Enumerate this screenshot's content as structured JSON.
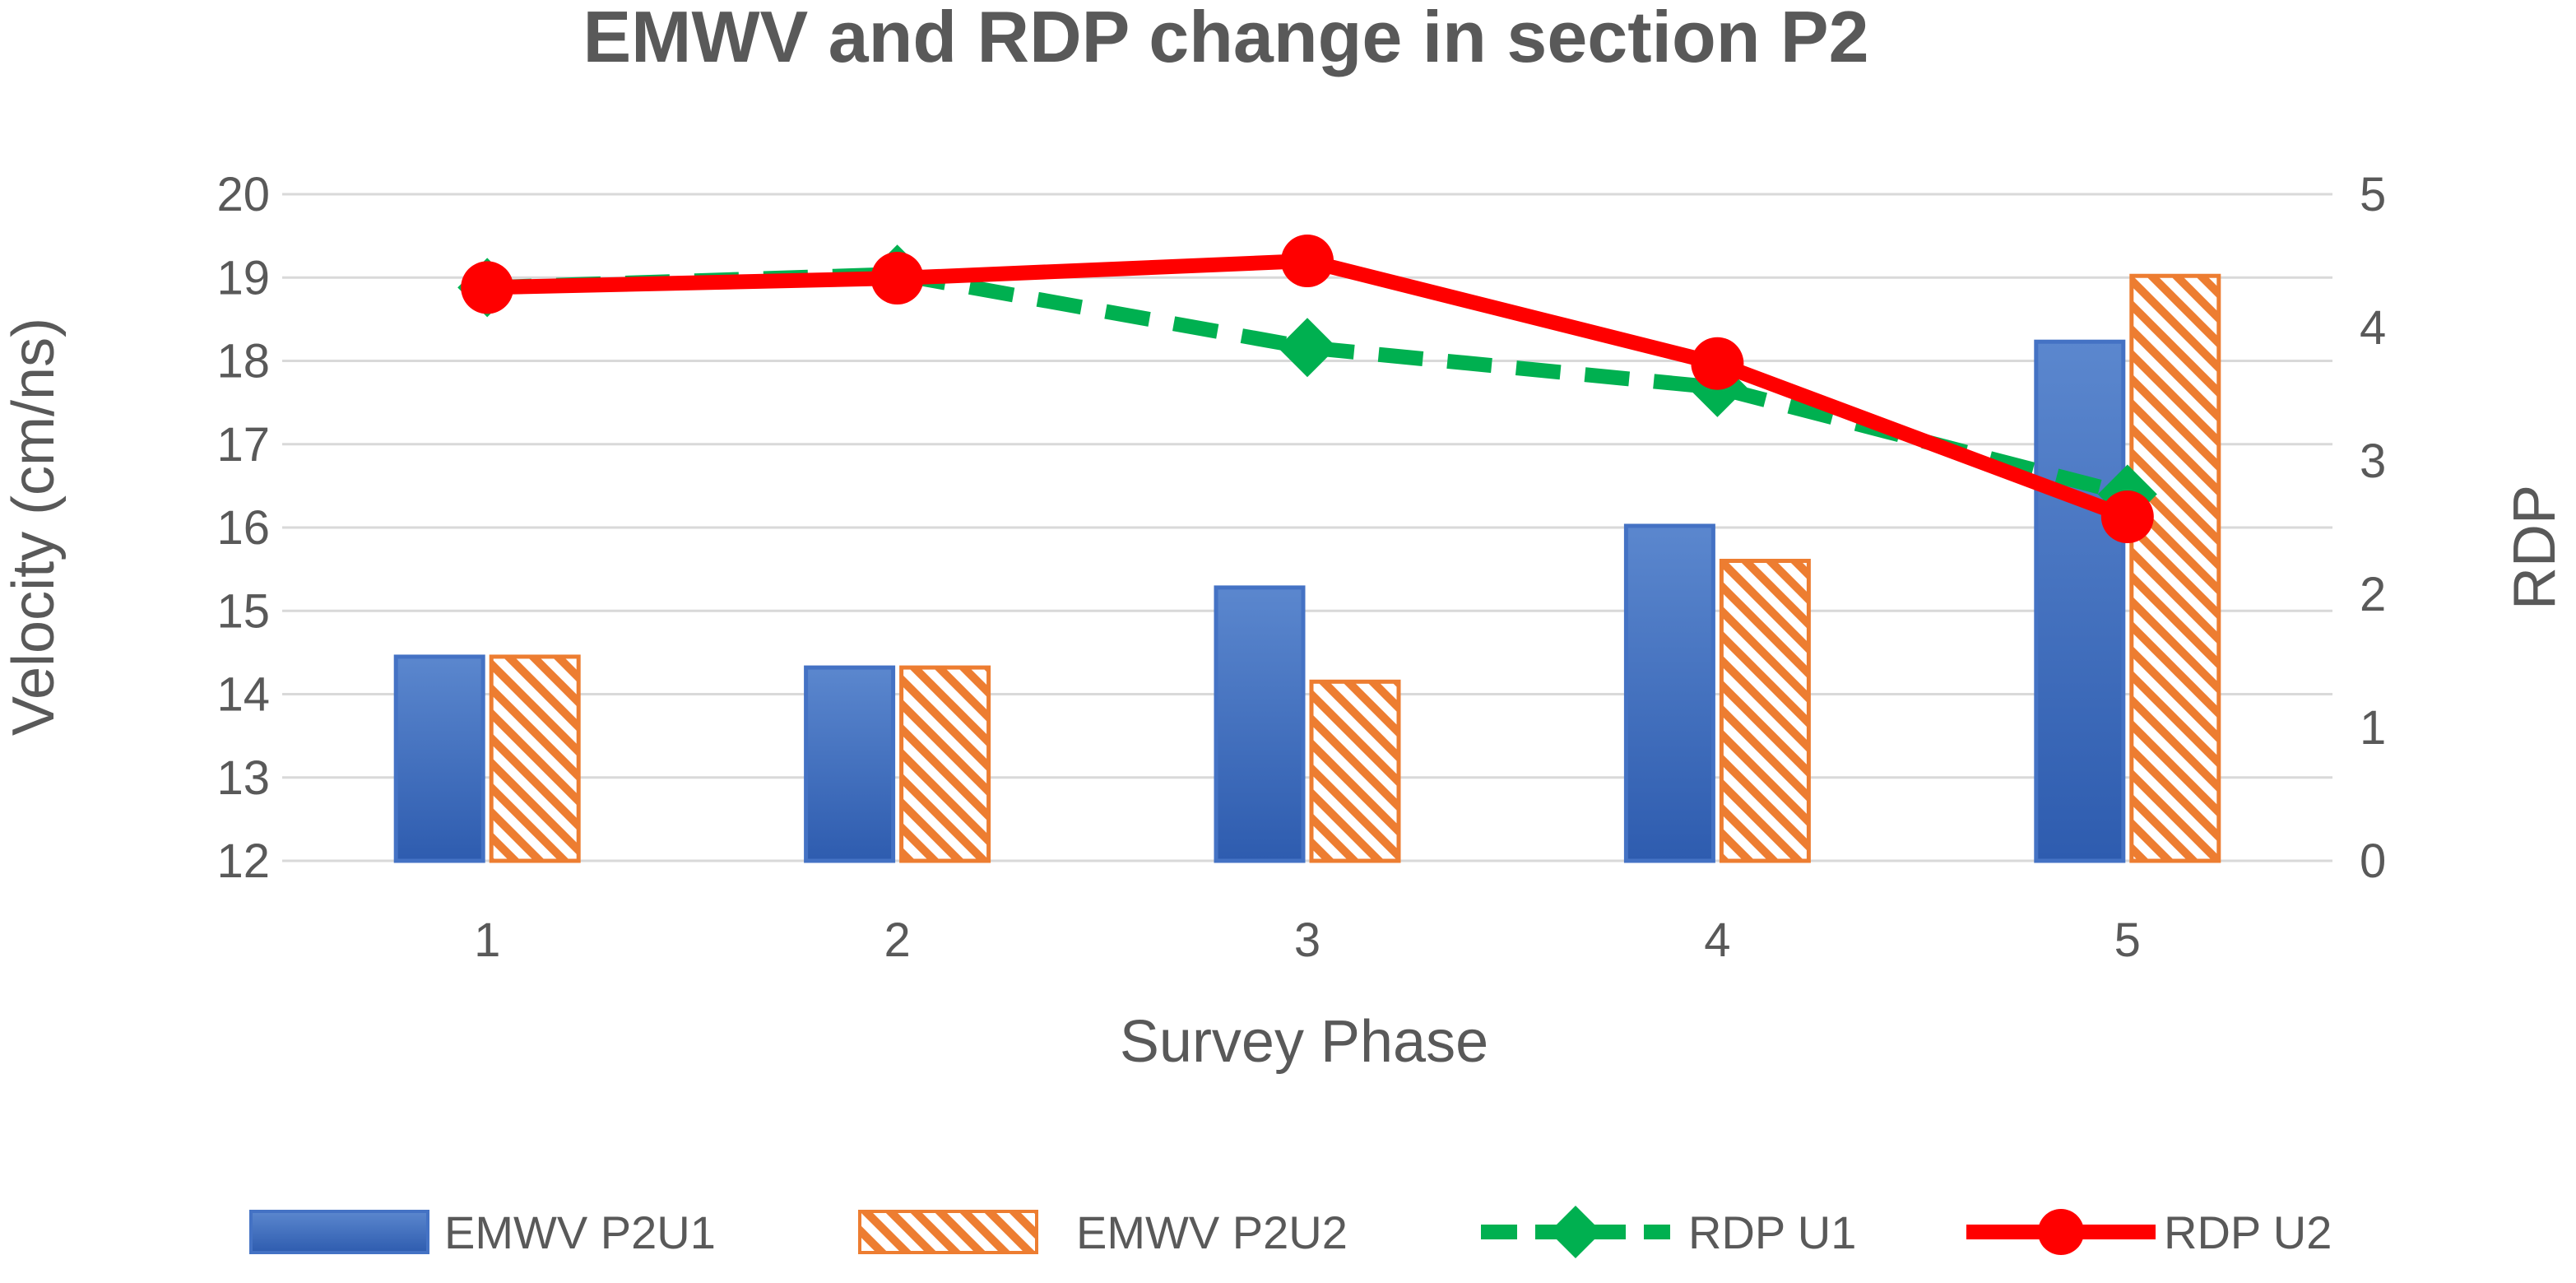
{
  "chart_data": {
    "type": "bar+line",
    "title": "EMWV and RDP change in section P2",
    "xlabel": "Survey Phase",
    "ylabel": "Velocity  (cm/ns)",
    "y2label": "RDP",
    "categories": [
      "1",
      "2",
      "3",
      "4",
      "5"
    ],
    "ylim": [
      12,
      20
    ],
    "yticks": [
      "12",
      "13",
      "14",
      "15",
      "16",
      "17",
      "18",
      "19",
      "20"
    ],
    "y2lim": [
      0,
      5
    ],
    "y2ticks": [
      "0",
      "1",
      "2",
      "3",
      "4",
      "5"
    ],
    "grid": true,
    "legend_position": "bottom",
    "series": [
      {
        "name": "EMWV P2U1",
        "kind": "bar",
        "axis": "left",
        "color": "#4472C4",
        "values": [
          14.45,
          14.32,
          15.28,
          16.02,
          18.23
        ]
      },
      {
        "name": "EMWV P2U2",
        "kind": "bar",
        "axis": "left",
        "color": "#ED7D31",
        "pattern": "diagonal-hatch",
        "values": [
          14.45,
          14.32,
          14.15,
          15.6,
          19.02
        ]
      },
      {
        "name": "RDP U1",
        "kind": "line",
        "axis": "right",
        "color": "#00B050",
        "dash": "dashed",
        "marker": "diamond",
        "values": [
          4.3,
          4.4,
          3.85,
          3.55,
          2.75
        ]
      },
      {
        "name": "RDP U2",
        "kind": "line",
        "axis": "right",
        "color": "#FF0000",
        "marker": "circle",
        "values": [
          4.3,
          4.37,
          4.5,
          3.73,
          2.58
        ]
      }
    ]
  }
}
